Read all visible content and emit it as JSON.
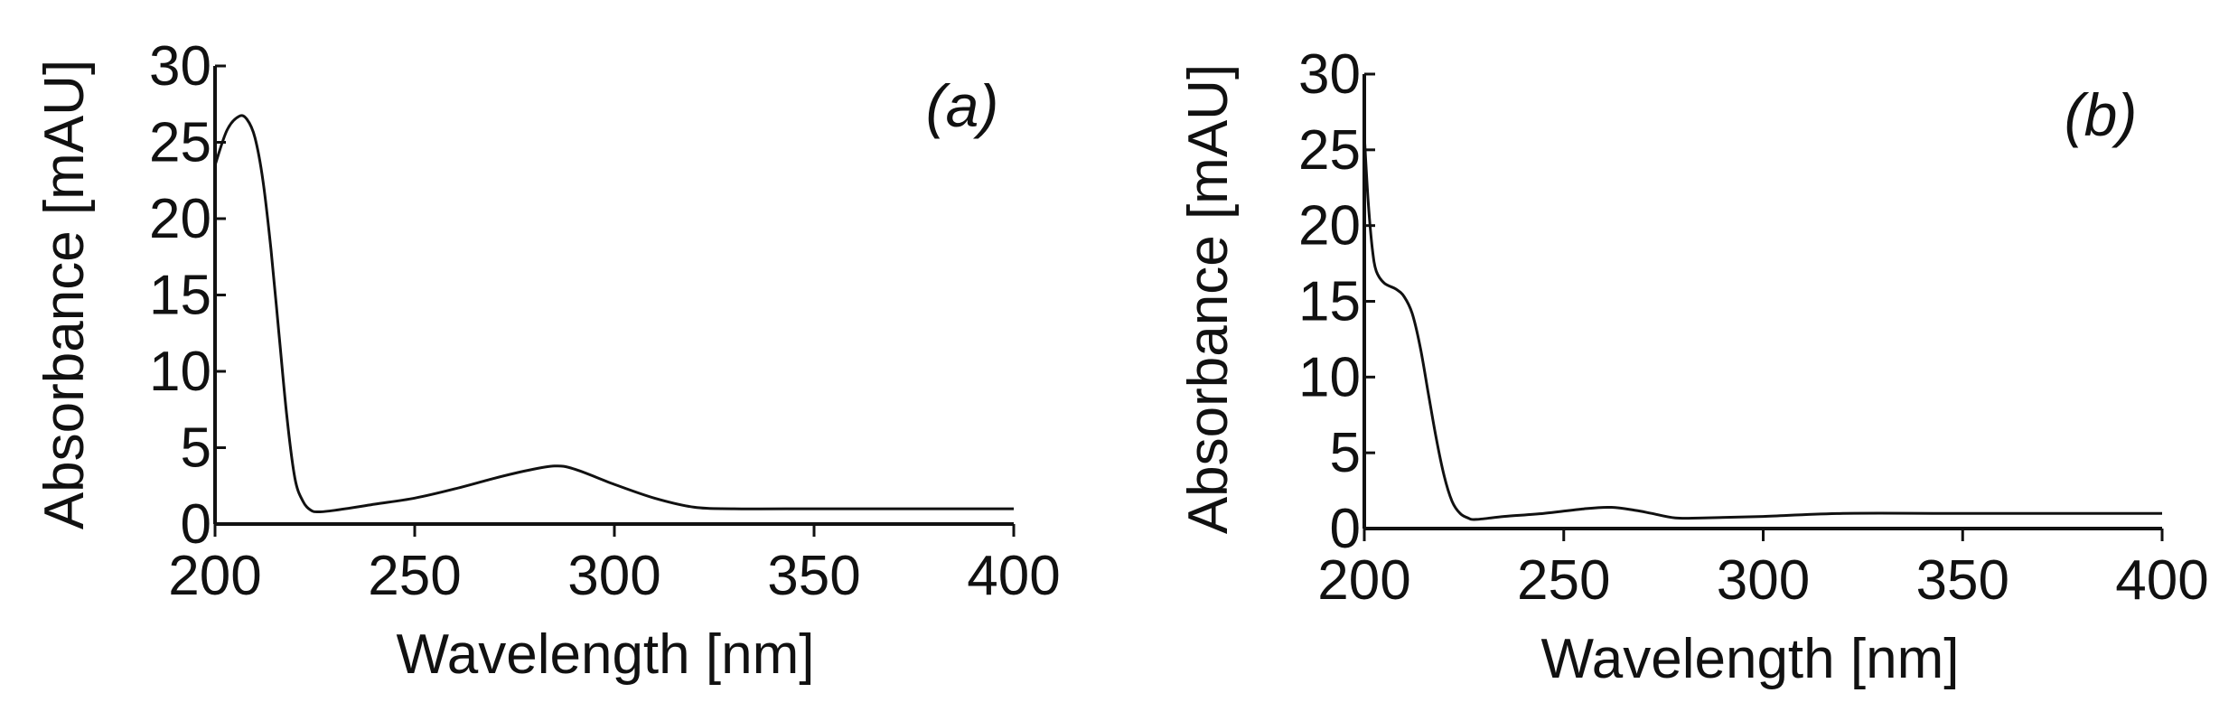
{
  "chart_data": [
    {
      "type": "line",
      "panel_label": "(a)",
      "xlabel": "Wavelength [nm]",
      "ylabel": "Absorbance [mAU]",
      "xlim": [
        200,
        400
      ],
      "ylim": [
        0,
        30
      ],
      "x_ticks": [
        200,
        250,
        300,
        350,
        400
      ],
      "y_ticks": [
        0,
        5,
        10,
        15,
        20,
        25,
        30
      ],
      "grid": false,
      "series": [
        {
          "color": "#111111",
          "x": [
            200,
            203,
            206,
            208,
            210,
            212,
            214,
            216,
            218,
            220,
            222,
            224,
            226,
            230,
            240,
            250,
            260,
            270,
            278,
            285,
            290,
            300,
            310,
            320,
            330,
            350,
            370,
            400
          ],
          "y": [
            23.5,
            25.8,
            26.7,
            26.5,
            25.3,
            22.5,
            18.0,
            12.5,
            7.0,
            3.0,
            1.5,
            0.9,
            0.8,
            0.9,
            1.3,
            1.7,
            2.3,
            3.0,
            3.5,
            3.8,
            3.6,
            2.6,
            1.7,
            1.1,
            1.0,
            1.0,
            1.0,
            1.0
          ]
        }
      ]
    },
    {
      "type": "line",
      "panel_label": "(b)",
      "xlabel": "Wavelength [nm]",
      "ylabel": "Absorbance [mAU]",
      "xlim": [
        200,
        400
      ],
      "ylim": [
        0,
        30
      ],
      "x_ticks": [
        200,
        250,
        300,
        350,
        400
      ],
      "y_ticks": [
        0,
        5,
        10,
        15,
        20,
        25,
        30
      ],
      "grid": false,
      "series": [
        {
          "color": "#111111",
          "x": [
            200,
            201,
            202,
            203,
            205,
            208,
            210,
            212,
            214,
            216,
            218,
            220,
            222,
            224,
            226,
            228,
            235,
            245,
            255,
            262,
            268,
            272,
            278,
            285,
            300,
            320,
            350,
            400
          ],
          "y": [
            26.0,
            21.5,
            18.5,
            17.0,
            16.2,
            15.8,
            15.3,
            14.2,
            12.0,
            9.0,
            6.0,
            3.5,
            1.8,
            1.0,
            0.7,
            0.6,
            0.8,
            1.0,
            1.3,
            1.4,
            1.2,
            1.0,
            0.7,
            0.7,
            0.8,
            1.0,
            1.0,
            1.0
          ]
        }
      ]
    }
  ]
}
